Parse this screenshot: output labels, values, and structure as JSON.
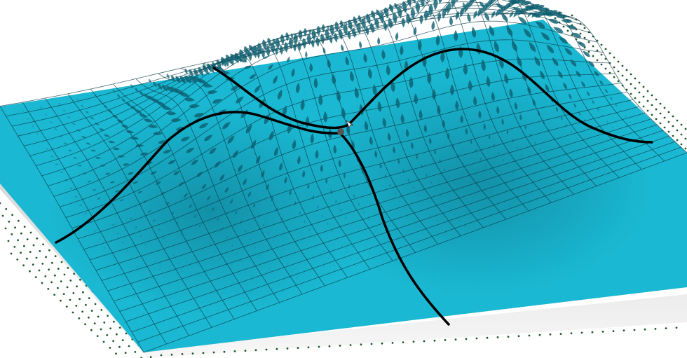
{
  "scene": {
    "surface": {
      "type": "two-peak gaussian mesh",
      "peaks": 2,
      "saddle_points": 1
    },
    "field": {
      "type": "gradient vector field",
      "glyph": "teardrop-arrow"
    },
    "curves": {
      "ridge_lines": 2,
      "meet_at": "saddle-point"
    }
  },
  "colors": {
    "surface": "#1ab8d2",
    "surface_shade": "#0e7f96",
    "mesh_lines": "#0a3a44",
    "curve": "#000000",
    "field_glyph": "#0d5f70",
    "outer_field_dots": "#1f5a2a",
    "saddle_marker": "#555555",
    "shadow": "#d8d8d8"
  }
}
